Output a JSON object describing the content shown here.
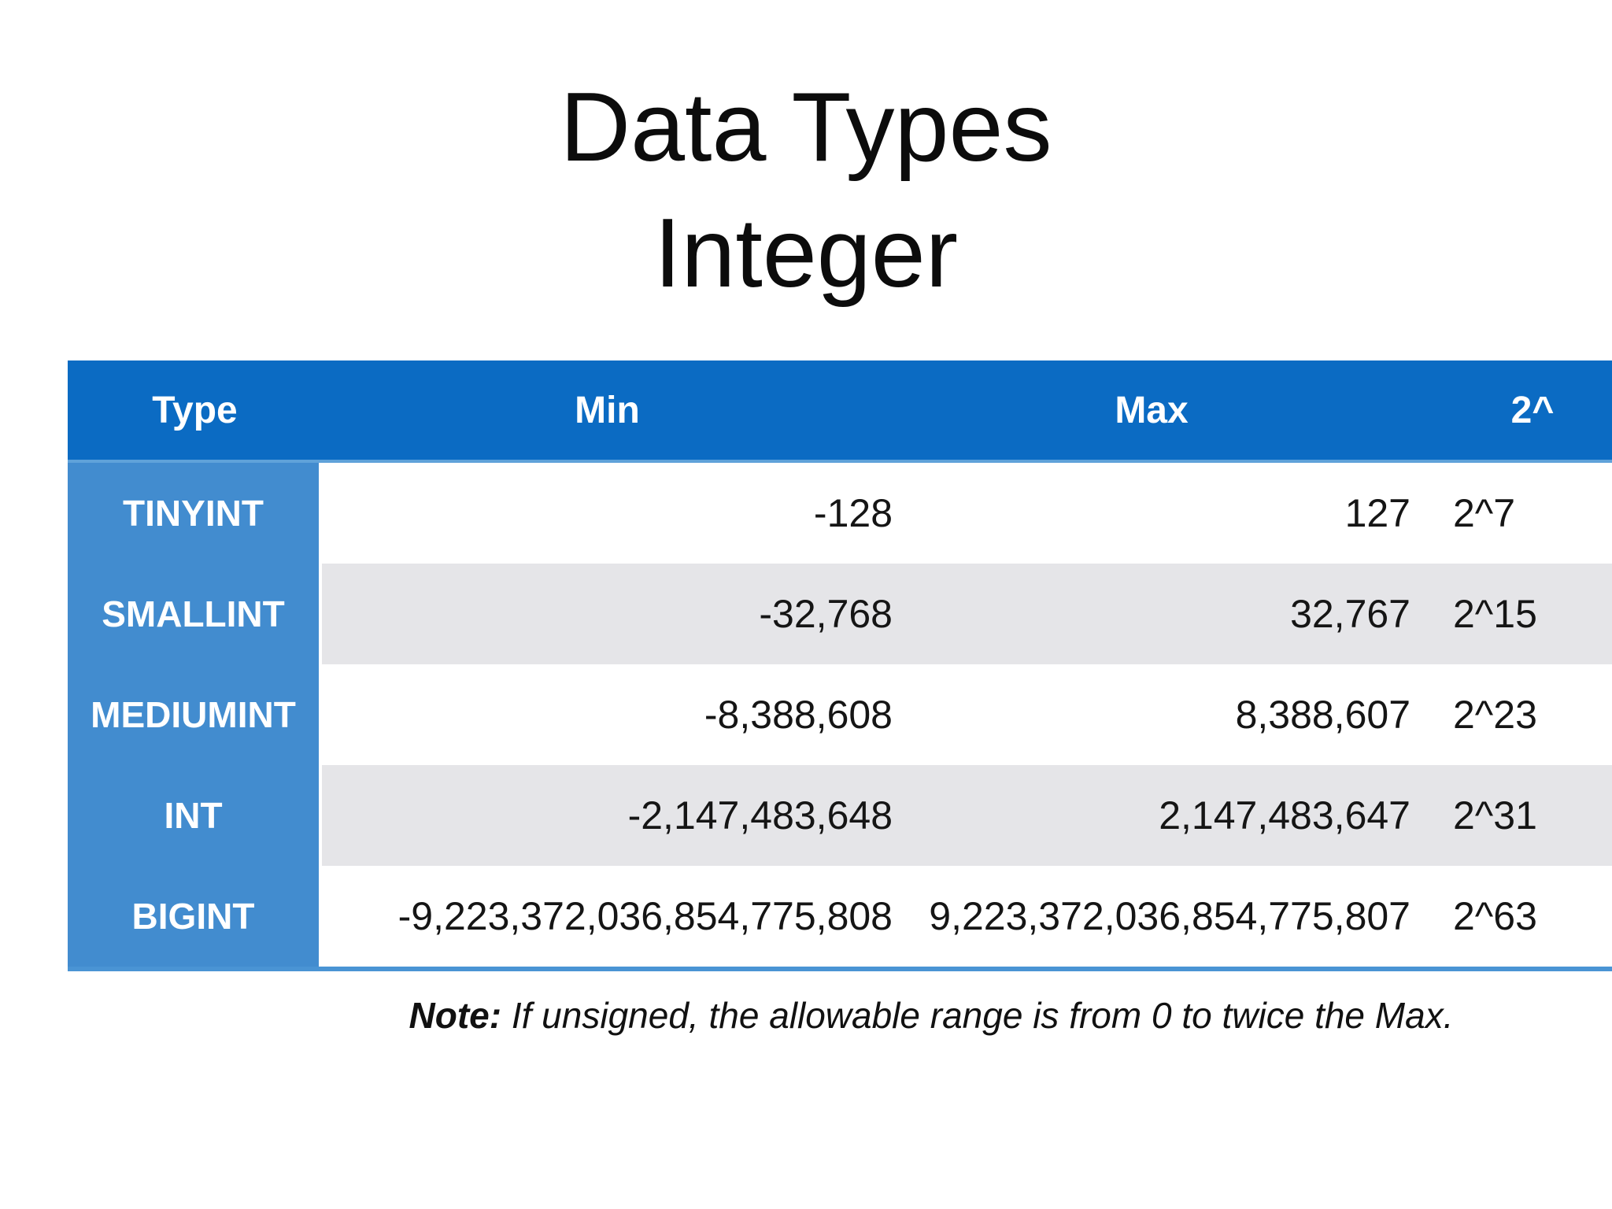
{
  "title": {
    "line1": "Data Types",
    "line2": "Integer"
  },
  "table": {
    "headers": [
      "Type",
      "Min",
      "Max",
      "2^"
    ],
    "rows": [
      {
        "type": "TINYINT",
        "min": "-128",
        "max": "127",
        "pow": "2^7"
      },
      {
        "type": "SMALLINT",
        "min": "-32,768",
        "max": "32,767",
        "pow": "2^15"
      },
      {
        "type": "MEDIUMINT",
        "min": "-8,388,608",
        "max": "8,388,607",
        "pow": "2^23"
      },
      {
        "type": "INT",
        "min": "-2,147,483,648",
        "max": "2,147,483,647",
        "pow": "2^31"
      },
      {
        "type": "BIGINT",
        "min": "-9,223,372,036,854,775,808",
        "max": "9,223,372,036,854,775,807",
        "pow": "2^63"
      }
    ]
  },
  "note": {
    "label": "Note:",
    "text": " If unsigned, the allowable range is from 0 to twice the Max."
  },
  "colors": {
    "header_bg": "#0b6bc3",
    "type_column_bg": "#428ccf",
    "stripe_row_bg": "#e5e5e8",
    "header_underline": "#5fa2da",
    "table_bottom_border": "#4a94d4",
    "text": "#111111",
    "background": "#ffffff"
  }
}
